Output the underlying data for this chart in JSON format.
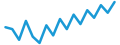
{
  "values": [
    3.5,
    3.2,
    1.5,
    4.5,
    2.0,
    1.0,
    3.8,
    2.2,
    4.8,
    3.2,
    5.5,
    4.0,
    6.2,
    5.0,
    7.0,
    5.8,
    7.5
  ],
  "line_color": "#1a9ad6",
  "bg_color": "#ffffff",
  "linewidth": 1.8
}
